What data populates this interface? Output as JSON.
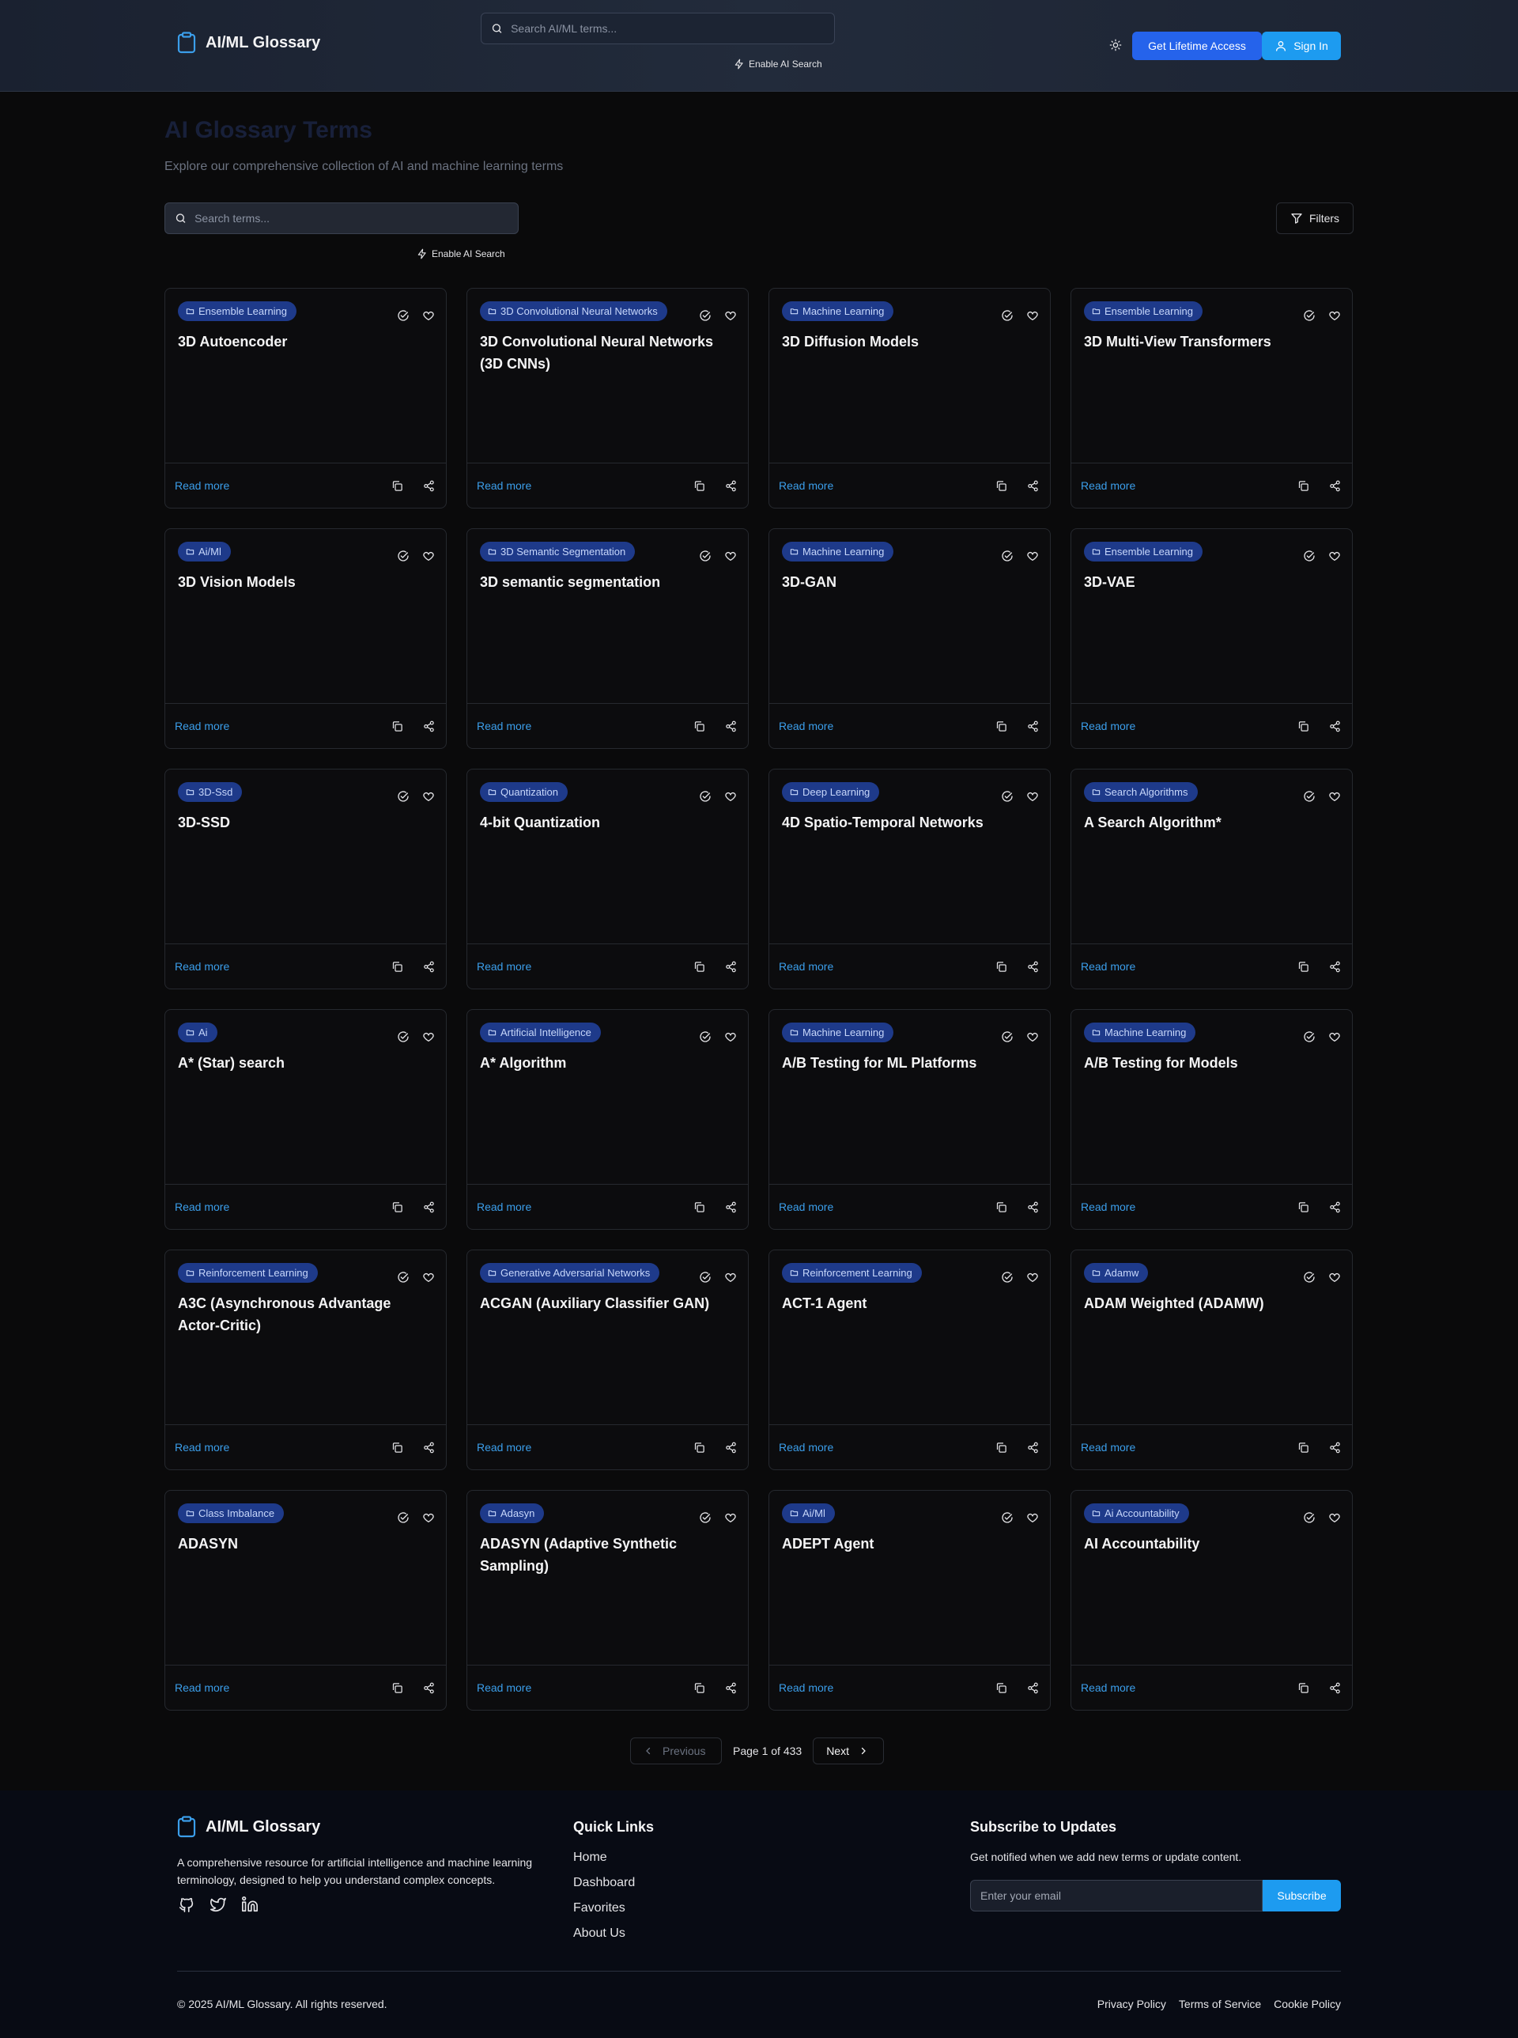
{
  "header": {
    "logo_text": "AI/ML Glossary",
    "search_placeholder": "Search AI/ML terms...",
    "ai_search_label": "Enable AI Search",
    "lifetime_label": "Get Lifetime Access",
    "signin_label": "Sign In"
  },
  "main": {
    "title": "AI Glossary Terms",
    "subtitle": "Explore our comprehensive collection of AI and machine learning terms",
    "search_placeholder": "Search terms...",
    "ai_search_label": "Enable AI Search",
    "filters_label": "Filters",
    "read_more_label": "Read more"
  },
  "cards": [
    {
      "category": "Ensemble Learning",
      "title": "3D Autoencoder"
    },
    {
      "category": "3D Convolutional Neural Networks",
      "title": "3D Convolutional Neural Networks (3D CNNs)"
    },
    {
      "category": "Machine Learning",
      "title": "3D Diffusion Models"
    },
    {
      "category": "Ensemble Learning",
      "title": "3D Multi-View Transformers"
    },
    {
      "category": "Ai/Ml",
      "title": "3D Vision Models"
    },
    {
      "category": "3D Semantic Segmentation",
      "title": "3D semantic segmentation"
    },
    {
      "category": "Machine Learning",
      "title": "3D-GAN"
    },
    {
      "category": "Ensemble Learning",
      "title": "3D-VAE"
    },
    {
      "category": "3D-Ssd",
      "title": "3D-SSD"
    },
    {
      "category": "Quantization",
      "title": "4-bit Quantization"
    },
    {
      "category": "Deep Learning",
      "title": "4D Spatio-Temporal Networks"
    },
    {
      "category": "Search Algorithms",
      "title": "A Search Algorithm*"
    },
    {
      "category": "Ai",
      "title": "A* (Star) search"
    },
    {
      "category": "Artificial Intelligence",
      "title": "A* Algorithm"
    },
    {
      "category": "Machine Learning",
      "title": "A/B Testing for ML Platforms"
    },
    {
      "category": "Machine Learning",
      "title": "A/B Testing for Models"
    },
    {
      "category": "Reinforcement Learning",
      "title": "A3C (Asynchronous Advantage Actor-Critic)"
    },
    {
      "category": "Generative Adversarial Networks",
      "title": "ACGAN (Auxiliary Classifier GAN)"
    },
    {
      "category": "Reinforcement Learning",
      "title": "ACT-1 Agent"
    },
    {
      "category": "Adamw",
      "title": "ADAM Weighted (ADAMW)"
    },
    {
      "category": "Class Imbalance",
      "title": "ADASYN"
    },
    {
      "category": "Adasyn",
      "title": "ADASYN (Adaptive Synthetic Sampling)"
    },
    {
      "category": "Ai/Ml",
      "title": "ADEPT Agent"
    },
    {
      "category": "Ai Accountability",
      "title": "AI Accountability"
    }
  ],
  "pagination": {
    "prev_label": "Previous",
    "page_info": "Page 1 of 433",
    "next_label": "Next"
  },
  "footer": {
    "logo_text": "AI/ML Glossary",
    "description": "A comprehensive resource for artificial intelligence and machine learning terminology, designed to help you understand complex concepts.",
    "quick_links_heading": "Quick Links",
    "quick_links": [
      "Home",
      "Dashboard",
      "Favorites",
      "About Us"
    ],
    "subscribe_heading": "Subscribe to Updates",
    "subscribe_text": "Get notified when we add new terms or update content.",
    "email_placeholder": "Enter your email",
    "subscribe_label": "Subscribe",
    "copyright": "© 2025 AI/ML Glossary. All rights reserved.",
    "legal_links": [
      "Privacy Policy",
      "Terms of Service",
      "Cookie Policy"
    ]
  },
  "colors": {
    "accent": "#2563eb",
    "sign_in": "#1d9bf0",
    "badge_bg": "#1e3a8a",
    "link": "#3b9eea"
  }
}
